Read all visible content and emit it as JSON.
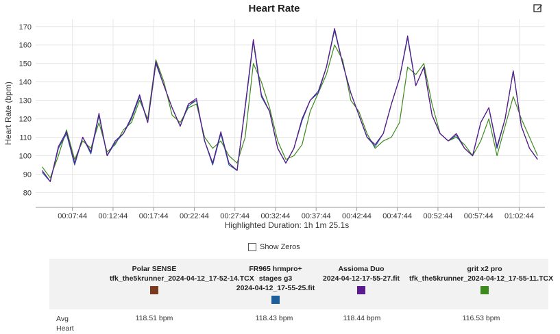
{
  "page": {
    "edit_icon": "edit-icon",
    "show_zeros_label": "Show Zeros",
    "avg_label_line1": "Avg",
    "avg_label_line2": "Heart"
  },
  "chart_data": {
    "type": "line",
    "title": "Heart Rate",
    "ylabel": "Heart Rate (bpm)",
    "xlabel": "Highlighted Duration: 1h 1m 25.1s",
    "ylim": [
      72,
      174
    ],
    "yticks": [
      80,
      90,
      100,
      110,
      120,
      130,
      140,
      150,
      160,
      170
    ],
    "xlim": [
      3.2,
      65.9
    ],
    "xticks": [
      {
        "t": 7.73,
        "label": "00:07:44"
      },
      {
        "t": 12.73,
        "label": "00:12:44"
      },
      {
        "t": 17.73,
        "label": "00:17:44"
      },
      {
        "t": 22.73,
        "label": "00:22:44"
      },
      {
        "t": 27.73,
        "label": "00:27:44"
      },
      {
        "t": 32.73,
        "label": "00:32:44"
      },
      {
        "t": 37.73,
        "label": "00:37:44"
      },
      {
        "t": 42.73,
        "label": "00:42:44"
      },
      {
        "t": 47.73,
        "label": "00:47:44"
      },
      {
        "t": 52.73,
        "label": "00:52:44"
      },
      {
        "t": 57.73,
        "label": "00:57:44"
      },
      {
        "t": 62.73,
        "label": "01:02:44"
      }
    ],
    "grid": true,
    "x": [
      4,
      5,
      6,
      7,
      8,
      9,
      10,
      11,
      12,
      13,
      14,
      15,
      16,
      17,
      18,
      19,
      20,
      21,
      22,
      23,
      24,
      25,
      26,
      27,
      28,
      29,
      30,
      31,
      32,
      33,
      34,
      35,
      36,
      37,
      38,
      39,
      40,
      41,
      42,
      43,
      44,
      45,
      46,
      47,
      48,
      49,
      50,
      51,
      52,
      53,
      54,
      55,
      56,
      57,
      58,
      59,
      60,
      61,
      62,
      63,
      64,
      65
    ],
    "series": [
      {
        "name": "Polar SENSE",
        "file": "tfk_the5krunner_2024-04-12_17-52-14.TCX",
        "color": "#7b3a1f",
        "avg": "118.51 bpm",
        "values": [
          92,
          86,
          104,
          112,
          96,
          110,
          102,
          122,
          100,
          108,
          112,
          120,
          132,
          118,
          150,
          138,
          126,
          116,
          128,
          130,
          108,
          96,
          112,
          96,
          92,
          126,
          162,
          132,
          124,
          104,
          96,
          104,
          120,
          130,
          134,
          148,
          168,
          150,
          134,
          122,
          110,
          106,
          112,
          128,
          142,
          164,
          138,
          148,
          122,
          112,
          108,
          112,
          104,
          100,
          118,
          126,
          104,
          120,
          146,
          116,
          104,
          98
        ]
      },
      {
        "name": "FR965 hrmpro+ stages g3",
        "file": "2024-04-12_17-55-25.fit",
        "color": "#1f5f99",
        "avg": "118.43 bpm",
        "values": [
          91,
          86,
          104,
          112,
          95,
          110,
          101,
          122,
          100,
          107,
          112,
          120,
          132,
          118,
          150,
          138,
          126,
          116,
          127,
          130,
          108,
          95,
          112,
          95,
          92,
          126,
          162,
          132,
          124,
          104,
          96,
          104,
          119,
          130,
          134,
          148,
          168,
          150,
          134,
          122,
          110,
          105,
          112,
          128,
          142,
          164,
          138,
          148,
          122,
          112,
          108,
          111,
          104,
          100,
          118,
          126,
          104,
          120,
          146,
          116,
          104,
          98
        ]
      },
      {
        "name": "Assioma Duo",
        "file": "2024-04-12-17-55-27.fit",
        "color": "#5a1a90",
        "avg": "118.44 bpm",
        "values": [
          92,
          86,
          105,
          113,
          96,
          110,
          102,
          123,
          100,
          108,
          112,
          121,
          133,
          118,
          151,
          138,
          126,
          116,
          128,
          131,
          108,
          96,
          113,
          96,
          92,
          127,
          163,
          133,
          124,
          104,
          96,
          104,
          120,
          130,
          135,
          148,
          169,
          150,
          134,
          122,
          110,
          106,
          112,
          128,
          142,
          165,
          138,
          148,
          122,
          112,
          108,
          112,
          104,
          100,
          118,
          126,
          105,
          120,
          146,
          116,
          104,
          98
        ]
      },
      {
        "name": "grit x2 pro",
        "file": "tfk_the5krunner_2024-04-12_17-55-11.TCX",
        "color": "#3c8a1c",
        "avg": "116.53 bpm",
        "values": [
          94,
          88,
          100,
          114,
          98,
          108,
          104,
          118,
          102,
          106,
          114,
          118,
          130,
          120,
          152,
          140,
          122,
          118,
          126,
          128,
          110,
          104,
          108,
          100,
          96,
          110,
          150,
          140,
          126,
          108,
          98,
          100,
          106,
          124,
          134,
          144,
          160,
          152,
          130,
          124,
          112,
          104,
          108,
          110,
          118,
          148,
          144,
          150,
          128,
          112,
          108,
          110,
          106,
          100,
          108,
          120,
          100,
          116,
          132,
          120,
          110,
          100
        ]
      }
    ]
  }
}
